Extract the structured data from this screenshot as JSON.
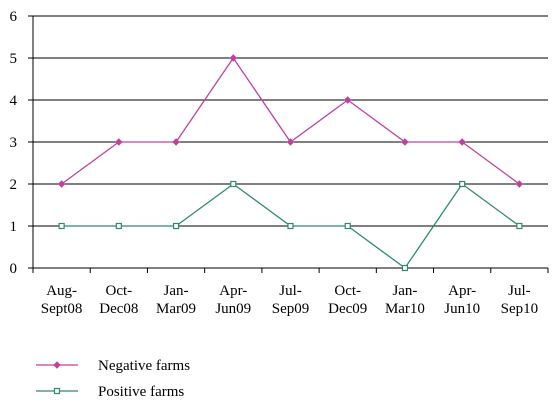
{
  "chart_data": {
    "type": "line",
    "categories": [
      [
        "Aug-",
        "Sept08"
      ],
      [
        "Oct-",
        "Dec08"
      ],
      [
        "Jan-",
        "Mar09"
      ],
      [
        "Apr-",
        "Jun09"
      ],
      [
        "Jul-",
        "Sep09"
      ],
      [
        "Oct-",
        "Dec09"
      ],
      [
        "Jan-",
        "Mar10"
      ],
      [
        "Apr-",
        "Jun10"
      ],
      [
        "Jul-",
        "Sep10"
      ]
    ],
    "ylim": [
      0,
      6
    ],
    "yticks": [
      0,
      1,
      2,
      3,
      4,
      5,
      6
    ],
    "grid": true,
    "legend_position": "bottom-left",
    "series": [
      {
        "name": "Negative farms",
        "color": "#c040a0",
        "marker": "diamond",
        "values": [
          2,
          3,
          3,
          5,
          3,
          4,
          3,
          3,
          2
        ]
      },
      {
        "name": "Positive farms",
        "color": "#2e8b6a",
        "marker": "square",
        "values": [
          1,
          1,
          1,
          2,
          1,
          1,
          0,
          2,
          1
        ]
      }
    ]
  }
}
